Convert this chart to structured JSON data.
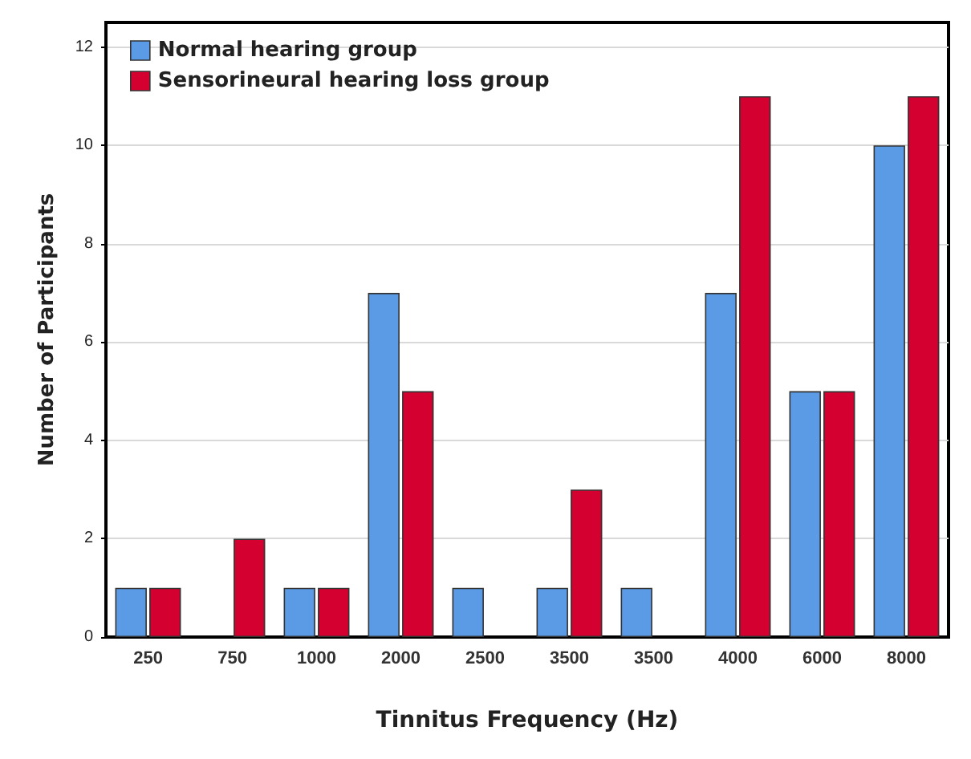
{
  "chart_data": {
    "type": "bar",
    "xlabel": "Tinnitus Frequency (Hz)",
    "ylabel": "Number of Participants",
    "categories": [
      "250",
      "750",
      "1000",
      "2000",
      "2500",
      "3500",
      "3500",
      "4000",
      "6000",
      "8000"
    ],
    "series": [
      {
        "name": "Normal hearing group",
        "color": "#5b9be6",
        "values": [
          1,
          0,
          1,
          7,
          1,
          1,
          1,
          7,
          5,
          10
        ]
      },
      {
        "name": "Sensorineural hearing loss group",
        "color": "#d40030",
        "values": [
          1,
          2,
          1,
          5,
          0,
          3,
          0,
          11,
          5,
          11
        ]
      }
    ],
    "ylim": [
      0,
      12.5
    ],
    "yticks": [
      0,
      2,
      4,
      6,
      8,
      10,
      12
    ],
    "grid": "y",
    "legend": "top left"
  }
}
